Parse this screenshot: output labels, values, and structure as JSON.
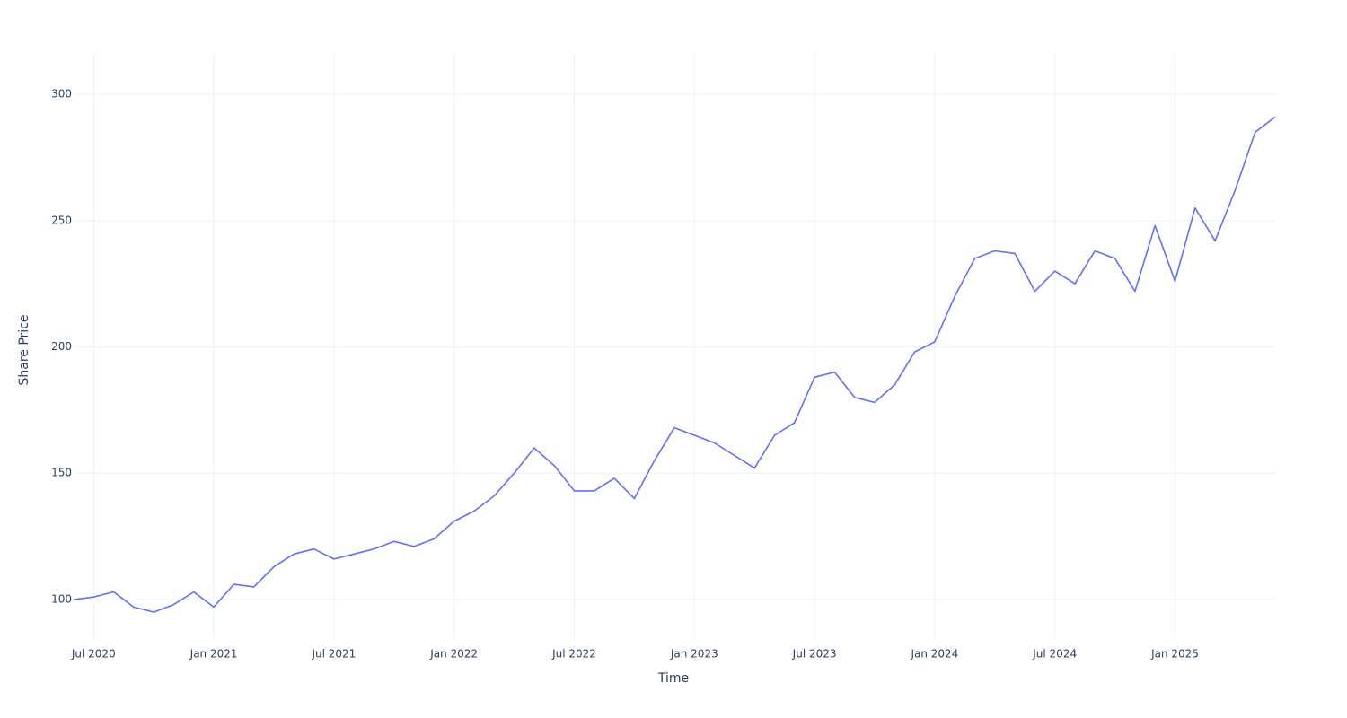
{
  "chart_data": {
    "type": "line",
    "x_label": "Time",
    "y_label": "Share Price",
    "x": [
      "2020-06",
      "2020-07",
      "2020-08",
      "2020-09",
      "2020-10",
      "2020-11",
      "2020-12",
      "2021-01",
      "2021-02",
      "2021-03",
      "2021-04",
      "2021-05",
      "2021-06",
      "2021-07",
      "2021-08",
      "2021-09",
      "2021-10",
      "2021-11",
      "2021-12",
      "2022-01",
      "2022-02",
      "2022-03",
      "2022-04",
      "2022-05",
      "2022-06",
      "2022-07",
      "2022-08",
      "2022-09",
      "2022-10",
      "2022-11",
      "2022-12",
      "2023-01",
      "2023-02",
      "2023-03",
      "2023-04",
      "2023-05",
      "2023-06",
      "2023-07",
      "2023-08",
      "2023-09",
      "2023-10",
      "2023-11",
      "2023-12",
      "2024-01",
      "2024-02",
      "2024-03",
      "2024-04",
      "2024-05",
      "2024-06",
      "2024-07",
      "2024-08",
      "2024-09",
      "2024-10",
      "2024-11",
      "2024-12",
      "2025-01",
      "2025-02",
      "2025-03",
      "2025-04",
      "2025-05",
      "2025-06"
    ],
    "series": [
      {
        "name": "Share Price",
        "color": "#636efa",
        "values": [
          100,
          101,
          103,
          97,
          95,
          98,
          103,
          97,
          106,
          105,
          113,
          118,
          120,
          116,
          118,
          120,
          123,
          121,
          124,
          131,
          135,
          141,
          150,
          160,
          153,
          143,
          143,
          148,
          140,
          155,
          168,
          165,
          162,
          157,
          152,
          165,
          170,
          188,
          190,
          180,
          178,
          185,
          198,
          202,
          220,
          235,
          238,
          237,
          222,
          230,
          225,
          238,
          235,
          222,
          248,
          226,
          255,
          242,
          262,
          285,
          291
        ]
      }
    ],
    "xlim": [
      "2020-06",
      "2025-06"
    ],
    "xticks": [
      {
        "value": "2020-07",
        "label": "Jul 2020"
      },
      {
        "value": "2021-01",
        "label": "Jan 2021"
      },
      {
        "value": "2021-07",
        "label": "Jul 2021"
      },
      {
        "value": "2022-01",
        "label": "Jan 2022"
      },
      {
        "value": "2022-07",
        "label": "Jul 2022"
      },
      {
        "value": "2023-01",
        "label": "Jan 2023"
      },
      {
        "value": "2023-07",
        "label": "Jul 2023"
      },
      {
        "value": "2024-01",
        "label": "Jan 2024"
      },
      {
        "value": "2024-07",
        "label": "Jul 2024"
      },
      {
        "value": "2025-01",
        "label": "Jan 2025"
      }
    ],
    "ylim": [
      84,
      316
    ],
    "yticks": [
      100,
      150,
      200,
      250,
      300
    ],
    "grid": true
  }
}
